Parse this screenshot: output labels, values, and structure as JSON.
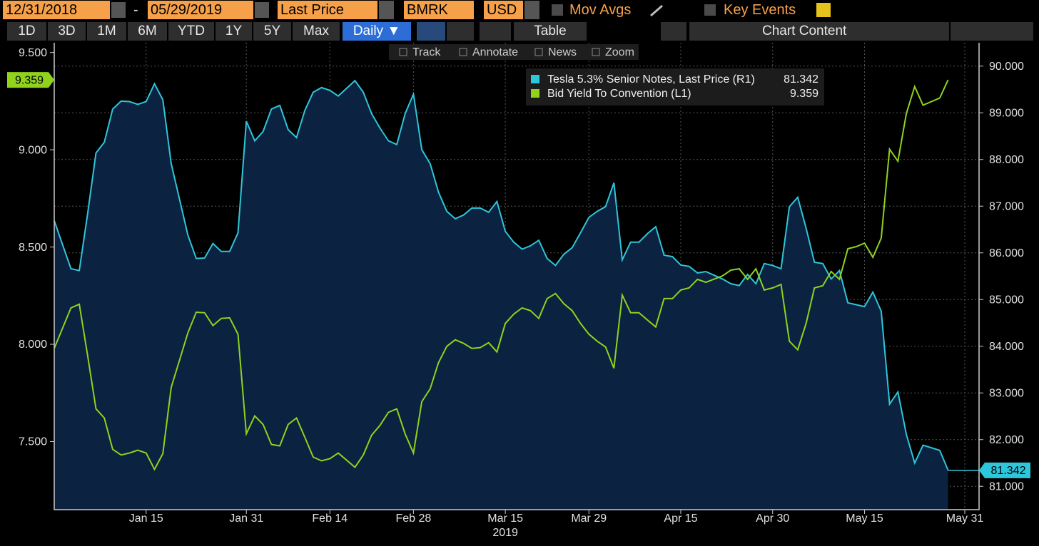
{
  "toolbar": {
    "start_date": "12/31/2018",
    "separator": "-",
    "end_date": "05/29/2019",
    "field": "Last Price",
    "source": "BMRK",
    "currency": "USD",
    "mov_avgs": "Mov Avgs",
    "key_events": "Key Events",
    "periods": [
      "1D",
      "3D",
      "1M",
      "6M",
      "YTD",
      "1Y",
      "5Y",
      "Max"
    ],
    "frequency": "Daily ▼",
    "table": "Table",
    "chart_content": "Chart Content",
    "tools": [
      "Track",
      "Annotate",
      "News",
      "Zoom"
    ]
  },
  "chart_data": {
    "type": "line",
    "grid": true,
    "xlabel": "2019",
    "x": [
      "2018-12-31",
      "2019-01-02",
      "2019-01-03",
      "2019-01-04",
      "2019-01-07",
      "2019-01-08",
      "2019-01-09",
      "2019-01-10",
      "2019-01-11",
      "2019-01-14",
      "2019-01-15",
      "2019-01-16",
      "2019-01-17",
      "2019-01-18",
      "2019-01-22",
      "2019-01-23",
      "2019-01-24",
      "2019-01-25",
      "2019-01-28",
      "2019-01-29",
      "2019-01-30",
      "2019-01-31",
      "2019-02-01",
      "2019-02-04",
      "2019-02-05",
      "2019-02-06",
      "2019-02-07",
      "2019-02-08",
      "2019-02-11",
      "2019-02-12",
      "2019-02-13",
      "2019-02-14",
      "2019-02-15",
      "2019-02-19",
      "2019-02-20",
      "2019-02-21",
      "2019-02-22",
      "2019-02-25",
      "2019-02-26",
      "2019-02-27",
      "2019-02-28",
      "2019-03-01",
      "2019-03-04",
      "2019-03-05",
      "2019-03-06",
      "2019-03-07",
      "2019-03-08",
      "2019-03-11",
      "2019-03-12",
      "2019-03-13",
      "2019-03-14",
      "2019-03-15",
      "2019-03-18",
      "2019-03-19",
      "2019-03-20",
      "2019-03-21",
      "2019-03-22",
      "2019-03-25",
      "2019-03-26",
      "2019-03-27",
      "2019-03-28",
      "2019-03-29",
      "2019-04-01",
      "2019-04-02",
      "2019-04-03",
      "2019-04-04",
      "2019-04-05",
      "2019-04-08",
      "2019-04-09",
      "2019-04-10",
      "2019-04-11",
      "2019-04-12",
      "2019-04-15",
      "2019-04-16",
      "2019-04-17",
      "2019-04-18",
      "2019-04-22",
      "2019-04-23",
      "2019-04-24",
      "2019-04-25",
      "2019-04-26",
      "2019-04-29",
      "2019-04-30",
      "2019-05-01",
      "2019-05-02",
      "2019-05-03",
      "2019-05-06",
      "2019-05-07",
      "2019-05-08",
      "2019-05-09",
      "2019-05-10",
      "2019-05-13",
      "2019-05-14",
      "2019-05-15",
      "2019-05-16",
      "2019-05-17",
      "2019-05-20",
      "2019-05-21",
      "2019-05-22",
      "2019-05-23",
      "2019-05-24",
      "2019-05-28",
      "2019-05-29"
    ],
    "xlim": [
      "2018-12-31",
      "2019-05-31"
    ],
    "xticks": [
      {
        "value": "2019-01-15",
        "label": "Jan 15"
      },
      {
        "value": "2019-01-31",
        "label": "Jan 31"
      },
      {
        "value": "2019-02-14",
        "label": "Feb 14"
      },
      {
        "value": "2019-02-28",
        "label": "Feb 28"
      },
      {
        "value": "2019-03-15",
        "label": "Mar 15"
      },
      {
        "value": "2019-03-29",
        "label": "Mar 29"
      },
      {
        "value": "2019-04-15",
        "label": "Apr 15"
      },
      {
        "value": "2019-04-30",
        "label": "Apr 30"
      },
      {
        "value": "2019-05-15",
        "label": "May 15"
      },
      {
        "value": "2019-05-31",
        "label": "May 31"
      }
    ],
    "ylim": [
      7.15,
      9.55
    ],
    "yticks": [
      {
        "value": 7.5,
        "label": "7.500"
      },
      {
        "value": 8,
        "label": "8.000"
      },
      {
        "value": 8.5,
        "label": "8.500"
      },
      {
        "value": 9,
        "label": "9.000"
      },
      {
        "value": 9.5,
        "label": "9.500"
      }
    ],
    "y2lim": [
      80.5,
      90.5
    ],
    "y2ticks": [
      {
        "value": 81,
        "label": "81.000"
      },
      {
        "value": 82,
        "label": "82.000"
      },
      {
        "value": 83,
        "label": "83.000"
      },
      {
        "value": 84,
        "label": "84.000"
      },
      {
        "value": 85,
        "label": "85.000"
      },
      {
        "value": 86,
        "label": "86.000"
      },
      {
        "value": 87,
        "label": "87.000"
      },
      {
        "value": 88,
        "label": "88.000"
      },
      {
        "value": 89,
        "label": "89.000"
      },
      {
        "value": 90,
        "label": "90.000"
      }
    ],
    "series": [
      {
        "name": "Tesla 5.3% Senior Notes, Last Price (R1)",
        "color": "#2ec6da",
        "area_color": "#0b2240",
        "axis": "y2",
        "values": [
          86.69,
          85.66,
          85.62,
          86.84,
          88.14,
          88.37,
          89.08,
          89.25,
          89.24,
          89.18,
          89.24,
          89.62,
          89.28,
          87.91,
          86.38,
          85.88,
          85.89,
          86.2,
          86.03,
          86.03,
          86.43,
          88.82,
          88.4,
          88.6,
          89.08,
          89.16,
          88.64,
          88.47,
          89.05,
          89.44,
          89.54,
          89.48,
          89.36,
          89.69,
          89.44,
          88.98,
          88.67,
          88.4,
          88.32,
          88.98,
          89.4,
          88.21,
          87.91,
          87.3,
          86.89,
          86.73,
          86.81,
          86.96,
          86.96,
          86.87,
          87.1,
          86.46,
          86.23,
          86.08,
          86.15,
          86.27,
          85.88,
          85.73,
          85.97,
          86.11,
          86.43,
          86.76,
          86.89,
          86.99,
          87.5,
          85.85,
          86.23,
          86.23,
          86.41,
          86.56,
          85.95,
          85.92,
          85.74,
          85.71,
          85.57,
          85.6,
          85.44,
          85.34,
          85.3,
          85.54,
          85.34,
          85.77,
          85.73,
          85.66,
          86.99,
          87.19,
          86.53,
          85.8,
          85.77,
          85.44,
          85.62,
          84.93,
          84.89,
          84.85,
          85.16,
          84.75,
          82.76,
          83.02,
          82.11,
          81.5,
          81.88,
          81.77,
          81.342
        ]
      },
      {
        "name": "Bid Yield To Convention (L1)",
        "color": "#8fd31c",
        "values": [
          7.979,
          8.187,
          8.206,
          7.942,
          7.668,
          7.621,
          7.46,
          7.431,
          7.441,
          7.456,
          7.441,
          7.357,
          7.438,
          7.778,
          8.059,
          8.165,
          8.162,
          8.096,
          8.133,
          8.136,
          8.052,
          7.54,
          7.632,
          7.588,
          7.485,
          7.478,
          7.588,
          7.621,
          7.522,
          7.42,
          7.401,
          7.412,
          7.441,
          7.368,
          7.431,
          7.533,
          7.584,
          7.65,
          7.668,
          7.54,
          7.441,
          7.705,
          7.771,
          7.906,
          7.99,
          8.023,
          8.005,
          7.979,
          7.983,
          8.008,
          7.961,
          8.107,
          8.155,
          8.187,
          8.173,
          8.133,
          8.235,
          8.261,
          8.209,
          8.173,
          8.107,
          8.052,
          8.016,
          7.986,
          7.877,
          8.253,
          8.162,
          8.162,
          8.125,
          8.089,
          8.235,
          8.235,
          8.279,
          8.29,
          8.334,
          8.319,
          8.352,
          8.381,
          8.388,
          8.334,
          8.388,
          8.279,
          8.29,
          8.308,
          8.016,
          7.972,
          8.107,
          8.29,
          8.301,
          8.374,
          8.334,
          8.491,
          8.502,
          8.52,
          8.447,
          8.546,
          9.003,
          8.941,
          9.186,
          9.325,
          9.229,
          9.266,
          9.359
        ]
      }
    ]
  }
}
